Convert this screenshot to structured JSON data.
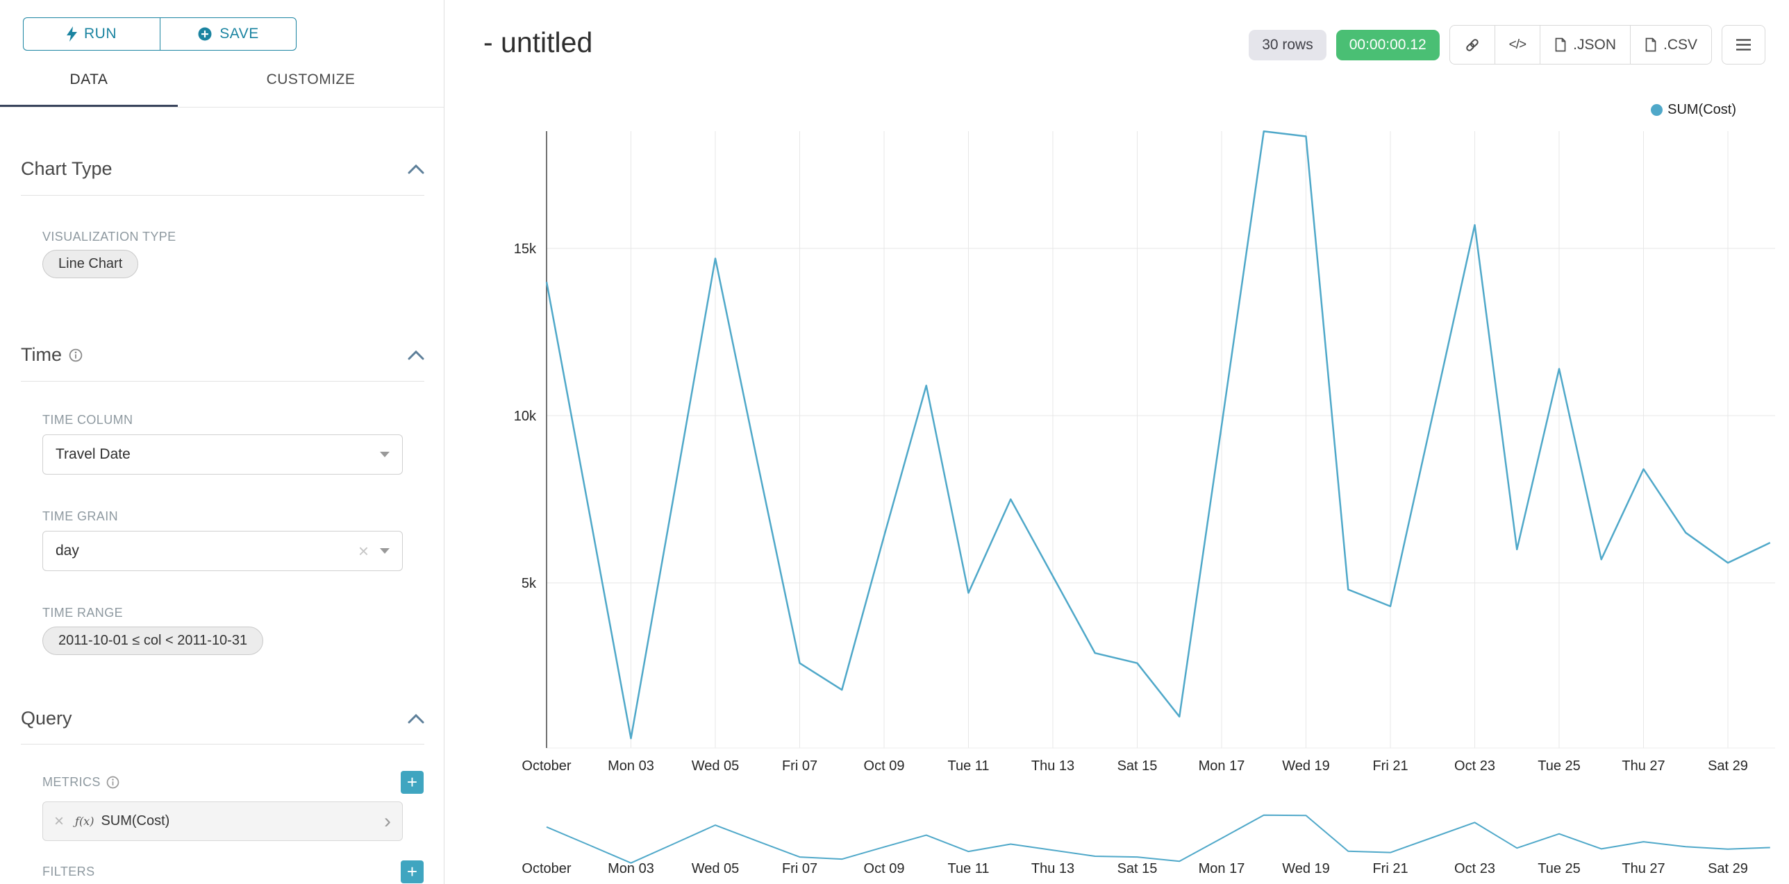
{
  "colors": {
    "accent": "#1b84a1",
    "line": "#4fa8c9",
    "success_badge": "#4abf74",
    "add_button": "#3fa5c0",
    "tab_underline": "#39445c"
  },
  "sidebar": {
    "run_button": "RUN",
    "save_button": "SAVE",
    "tabs": {
      "data": "DATA",
      "customize": "CUSTOMIZE"
    },
    "chart_type": {
      "title": "Chart Type",
      "visualization_type_label": "VISUALIZATION TYPE",
      "visualization_type_value": "Line Chart"
    },
    "time": {
      "title": "Time",
      "time_column_label": "TIME COLUMN",
      "time_column_value": "Travel Date",
      "time_grain_label": "TIME GRAIN",
      "time_grain_value": "day",
      "time_range_label": "TIME RANGE",
      "time_range_value": "2011-10-01 ≤ col < 2011-10-31"
    },
    "query": {
      "title": "Query",
      "metrics_label": "METRICS",
      "metric_fx": "ƒ(x)",
      "metric_value": "SUM(Cost)",
      "filters_label": "FILTERS"
    }
  },
  "header": {
    "title": "- untitled",
    "rows_badge": "30 rows",
    "timer_badge": "00:00:00.12",
    "json_button": ".JSON",
    "csv_button": ".CSV"
  },
  "chart_data": {
    "type": "line",
    "title": "- untitled",
    "legend_position": "top-right",
    "grid": true,
    "line_color": "#4fa8c9",
    "x": [
      "2011-10-01",
      "2011-10-02",
      "2011-10-03",
      "2011-10-04",
      "2011-10-05",
      "2011-10-06",
      "2011-10-07",
      "2011-10-08",
      "2011-10-09",
      "2011-10-10",
      "2011-10-11",
      "2011-10-12",
      "2011-10-13",
      "2011-10-14",
      "2011-10-15",
      "2011-10-16",
      "2011-10-17",
      "2011-10-18",
      "2011-10-19",
      "2011-10-20",
      "2011-10-21",
      "2011-10-22",
      "2011-10-23",
      "2011-10-24",
      "2011-10-25",
      "2011-10-26",
      "2011-10-27",
      "2011-10-28",
      "2011-10-29",
      "2011-10-30"
    ],
    "x_tick_labels": [
      "October",
      "Mon 03",
      "Wed 05",
      "Fri 07",
      "Oct 09",
      "Tue 11",
      "Thu 13",
      "Sat 15",
      "Mon 17",
      "Wed 19",
      "Fri 21",
      "Oct 23",
      "Tue 25",
      "Thu 27",
      "Sat 29"
    ],
    "y_ticks": [
      5000,
      10000,
      15000
    ],
    "y_tick_labels": [
      "5k",
      "10k",
      "15k"
    ],
    "ylim": [
      0,
      18800
    ],
    "series": [
      {
        "name": "SUM(Cost)",
        "values": [
          14000,
          7200,
          350,
          7500,
          14700,
          8600,
          2600,
          1800,
          6400,
          10900,
          4700,
          7500,
          5200,
          2900,
          2600,
          1000,
          9700,
          18500,
          18350,
          4800,
          4300,
          10000,
          15700,
          6000,
          11400,
          5700,
          8400,
          6500,
          5600,
          6200
        ]
      }
    ],
    "focus_chart": true
  }
}
